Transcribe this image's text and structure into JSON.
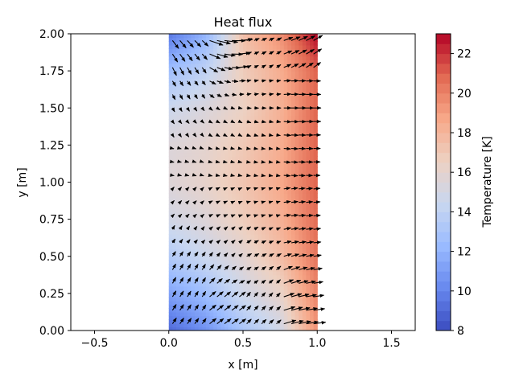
{
  "chart_data": {
    "type": "heatmap",
    "title": "Heat flux",
    "xlabel": "x [m]",
    "ylabel": "y [m]",
    "xlim": [
      -0.66,
      1.66
    ],
    "ylim": [
      0,
      2
    ],
    "x_ticks": [
      -0.5,
      0.0,
      0.5,
      1.0,
      1.5
    ],
    "x_tick_labels": [
      "−0.5",
      "0.0",
      "0.5",
      "1.0",
      "1.5"
    ],
    "y_ticks": [
      0.0,
      0.25,
      0.5,
      0.75,
      1.0,
      1.25,
      1.5,
      1.75,
      2.0
    ],
    "y_tick_labels": [
      "0.00",
      "0.25",
      "0.50",
      "0.75",
      "1.00",
      "1.25",
      "1.50",
      "1.75",
      "2.00"
    ],
    "domain": {
      "x": [
        0,
        1
      ],
      "y": [
        0,
        2
      ]
    },
    "colorbar": {
      "label": "Temperature [K]",
      "range": [
        8,
        23
      ],
      "ticks": [
        8,
        10,
        12,
        14,
        16,
        18,
        20,
        22
      ],
      "tick_labels": [
        "8",
        "10",
        "12",
        "14",
        "16",
        "18",
        "20",
        "22"
      ],
      "colormap": "coolwarm",
      "colors": [
        "#3b4cc0",
        "#6788ee",
        "#9abbff",
        "#c9d7f0",
        "#edd1c2",
        "#f7a889",
        "#e26952",
        "#b40426"
      ]
    },
    "temperature_samples": {
      "x": [
        0.0,
        0.25,
        0.5,
        0.75,
        1.0
      ],
      "y": [
        0.0,
        0.25,
        0.5,
        0.75,
        1.0,
        1.25,
        1.5,
        1.75,
        2.0
      ],
      "values": [
        [
          9.0,
          10.5,
          13.0,
          14.8,
          19.5
        ],
        [
          11.2,
          12.5,
          14.8,
          16.2,
          20.0
        ],
        [
          13.4,
          14.6,
          15.8,
          17.6,
          20.5
        ],
        [
          14.9,
          15.6,
          16.8,
          18.2,
          20.8
        ],
        [
          15.6,
          16.2,
          17.2,
          18.6,
          21.0
        ],
        [
          15.5,
          16.0,
          17.0,
          18.4,
          21.0
        ],
        [
          14.6,
          15.4,
          16.5,
          18.2,
          21.0
        ],
        [
          12.6,
          14.0,
          16.8,
          18.4,
          21.0
        ],
        [
          9.5,
          12.0,
          17.5,
          19.5,
          23.0
        ]
      ]
    },
    "flux_field": {
      "nx": 20,
      "ny": 22,
      "description": "quiver arrows of heat flux"
    }
  }
}
